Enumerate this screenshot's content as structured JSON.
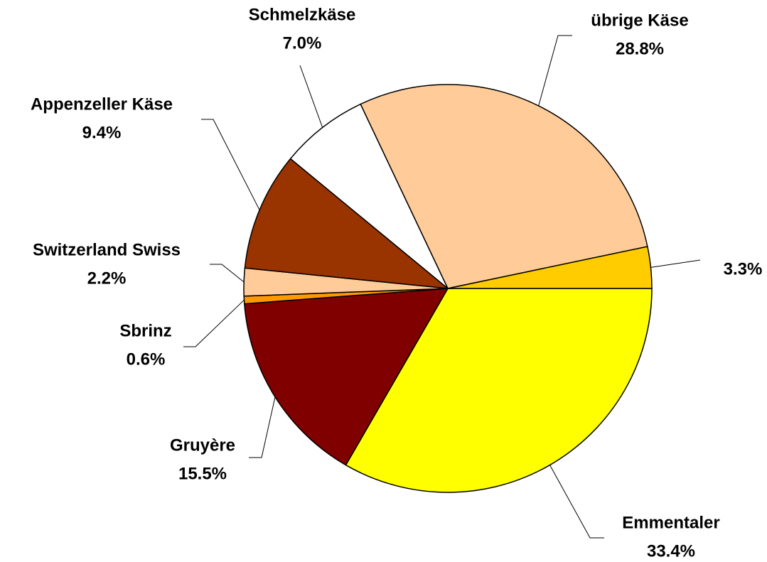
{
  "chart_data": {
    "type": "pie",
    "categories": [
      "Emmentaler",
      "Gruyère",
      "Sbrinz",
      "Switzerland Swiss",
      "Appenzeller Käse",
      "Schmelzkäse",
      "übrige Käse",
      null
    ],
    "values": [
      33.4,
      15.5,
      0.6,
      2.2,
      9.4,
      7.0,
      28.8,
      3.3
    ],
    "value_labels": [
      "33.4%",
      "15.5%",
      "0.6%",
      "2.2%",
      "9.4%",
      "7.0%",
      "28.8%",
      "3.3%"
    ],
    "colors": [
      "#ffff00",
      "#800000",
      "#ff9900",
      "#ffcc99",
      "#993300",
      "#ffffff",
      "#ffcc99",
      "#ffcc00"
    ]
  }
}
